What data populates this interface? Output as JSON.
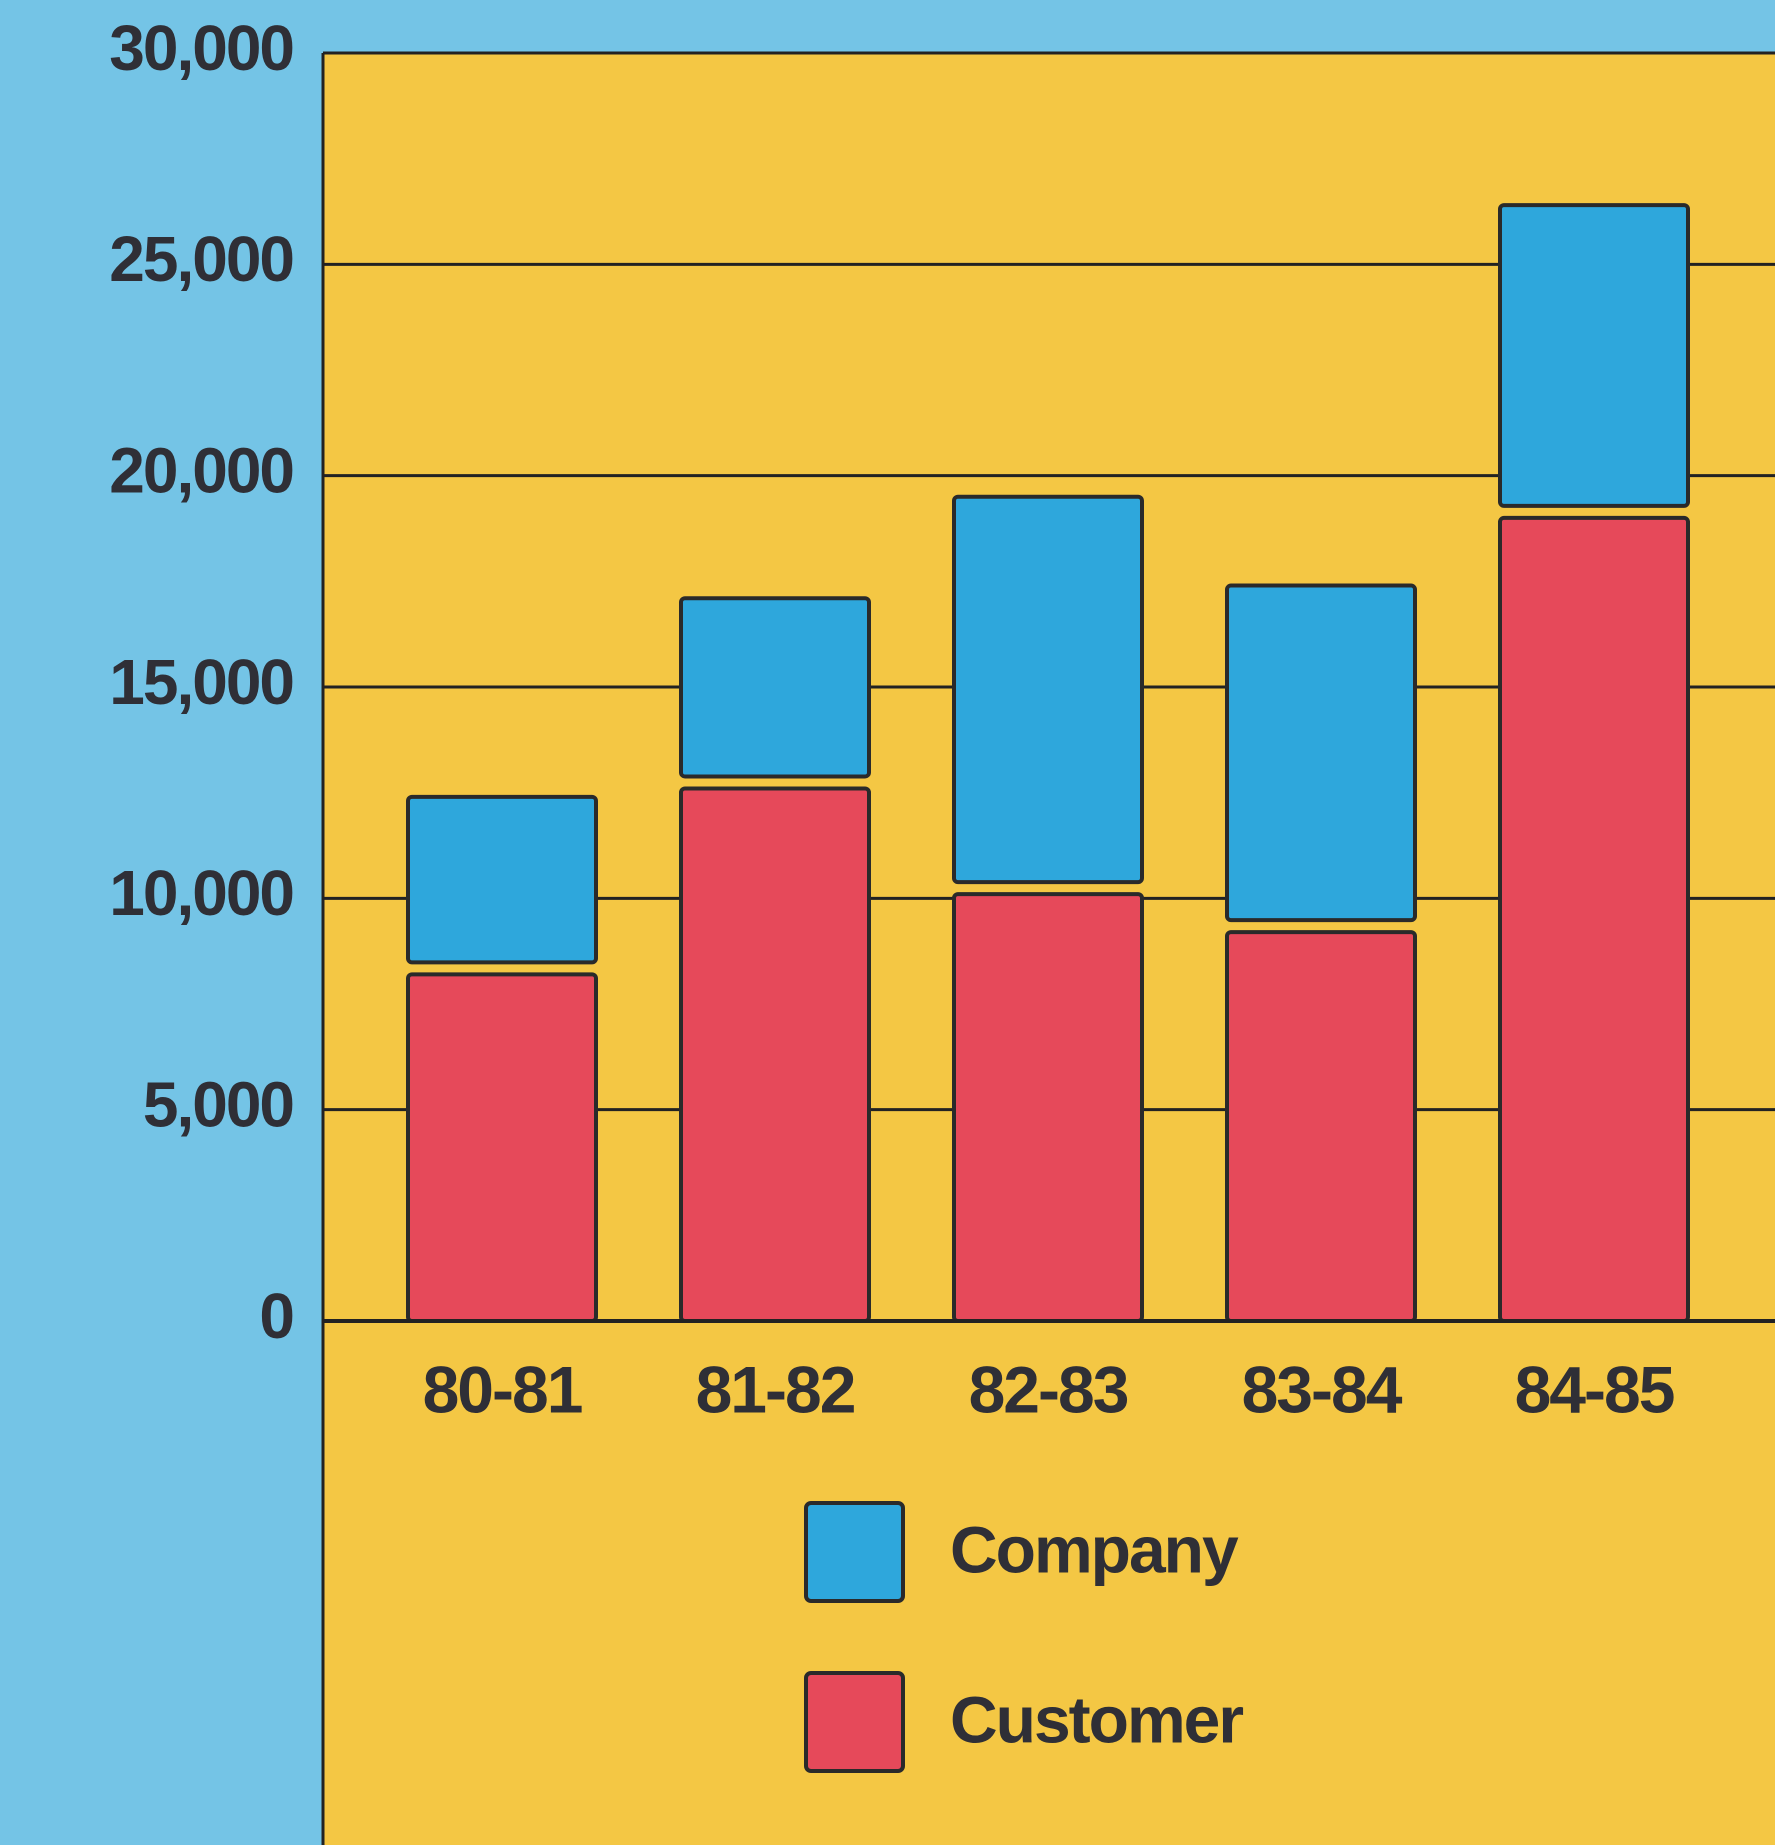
{
  "chart_data": {
    "type": "stacked_bar",
    "categories": [
      "80-81",
      "81-82",
      "82-83",
      "83-84",
      "84-85"
    ],
    "series": [
      {
        "name": "Company",
        "color": "#2ea7dc",
        "values": [
          4200,
          4500,
          9400,
          8200,
          7400
        ]
      },
      {
        "name": "Customer",
        "color": "#e6495a",
        "values": [
          8200,
          12600,
          10100,
          9200,
          19000
        ]
      }
    ],
    "ylim": [
      0,
      30000
    ],
    "yticks": [
      0,
      {
        "value": 5000,
        "label": "5,000"
      },
      {
        "value": 10000,
        "label": "10,000"
      },
      {
        "value": 15000,
        "label": "15,000"
      },
      {
        "value": 20000,
        "label": "20,000"
      },
      {
        "value": 25000,
        "label": "25,000"
      },
      {
        "value": 30000,
        "label": "30,000"
      }
    ],
    "grid": true
  }
}
